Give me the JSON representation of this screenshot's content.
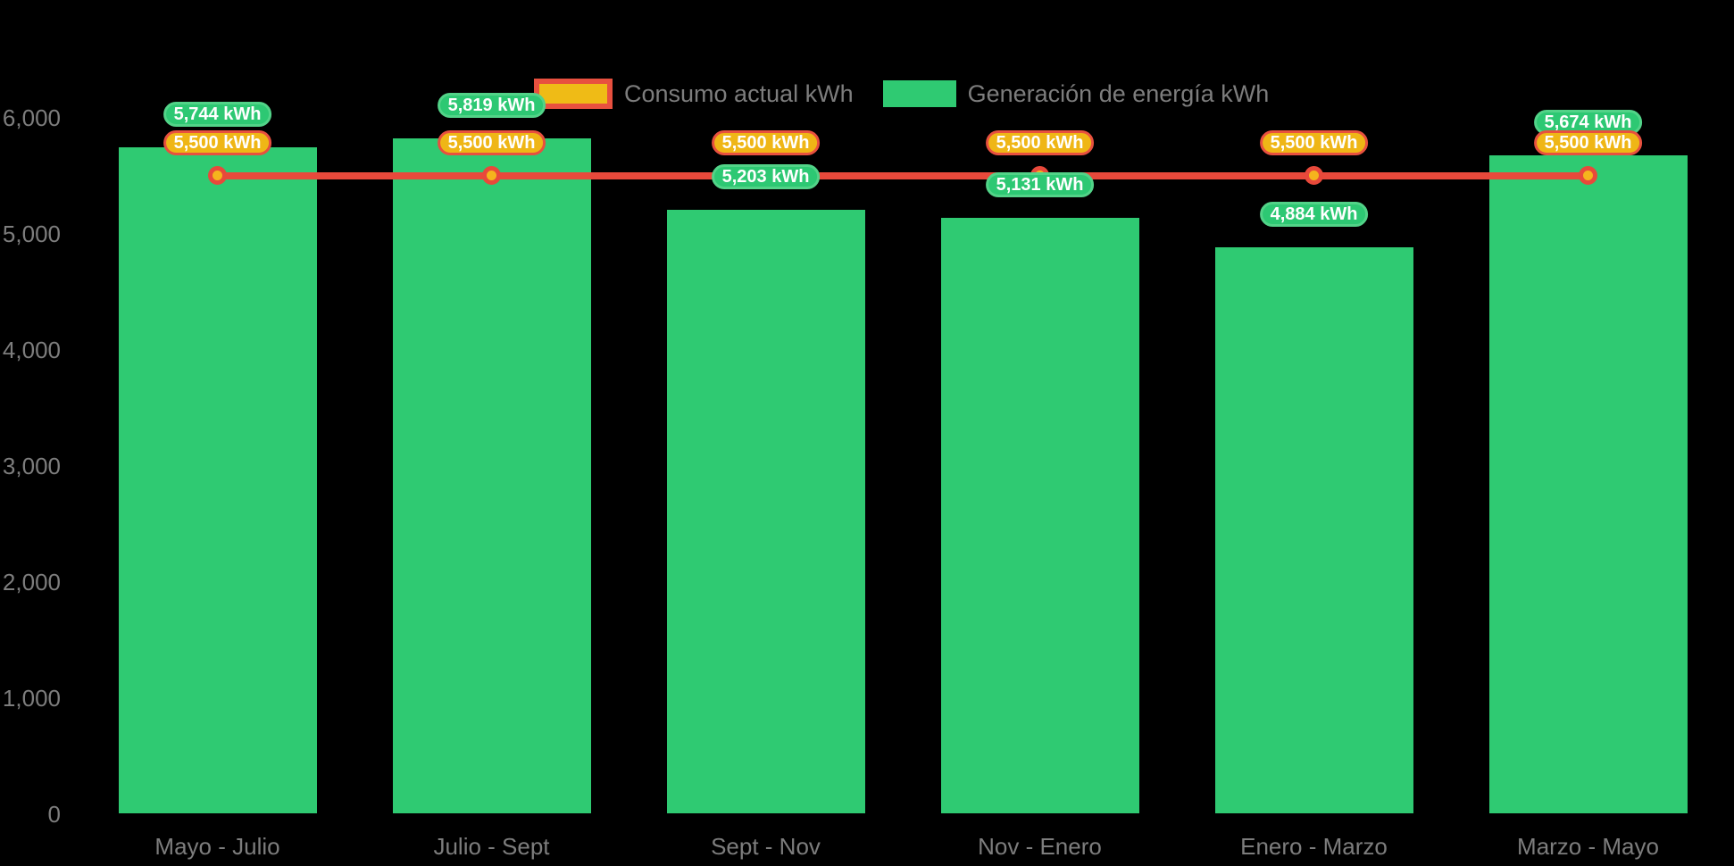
{
  "colors": {
    "background": "#000000",
    "generation_green": "#2fca72",
    "generation_pill_border": "#52d388",
    "consumption_red": "#e8493b",
    "consumption_yellow": "#efb616",
    "marker_center_yellow": "#f5b41d",
    "axis_text_gray": "#7d7d7d",
    "pill_text": "#ffffff"
  },
  "legend": {
    "items": [
      {
        "id": "consumption",
        "label": "Consumo actual kWh"
      },
      {
        "id": "generation",
        "label": "Generación de energía kWh"
      }
    ]
  },
  "chart_data": {
    "type": "bar",
    "title": "",
    "xlabel": "",
    "ylabel": "",
    "categories": [
      "Mayo - Julio",
      "Julio - Sept",
      "Sept - Nov",
      "Nov - Enero",
      "Enero - Marzo",
      "Marzo - Mayo"
    ],
    "series": [
      {
        "name": "Generación de energía kWh",
        "type": "bar",
        "color": "#2fca72",
        "values": [
          5744,
          5819,
          5203,
          5131,
          4884,
          5674
        ],
        "labels": [
          "5,744 kWh",
          "5,819 kWh",
          "5,203 kWh",
          "5,131 kWh",
          "4,884 kWh",
          "5,674 kWh"
        ]
      },
      {
        "name": "Consumo actual kWh",
        "type": "line",
        "color": "#e8493b",
        "values": [
          5500,
          5500,
          5500,
          5500,
          5500,
          5500
        ],
        "labels": [
          "5,500 kWh",
          "5,500 kWh",
          "5,500 kWh",
          "5,500 kWh",
          "5,500 kWh",
          "5,500 kWh"
        ]
      }
    ],
    "ylim": [
      0,
      6000
    ],
    "yticks": [
      {
        "value": 0,
        "label": "0"
      },
      {
        "value": 1000,
        "label": "1,000"
      },
      {
        "value": 2000,
        "label": "2,000"
      },
      {
        "value": 3000,
        "label": "3,000"
      },
      {
        "value": 4000,
        "label": "4,000"
      },
      {
        "value": 5000,
        "label": "5,000"
      },
      {
        "value": 6000,
        "label": "6,000"
      }
    ],
    "grid": false,
    "legend_position": "top-center"
  }
}
